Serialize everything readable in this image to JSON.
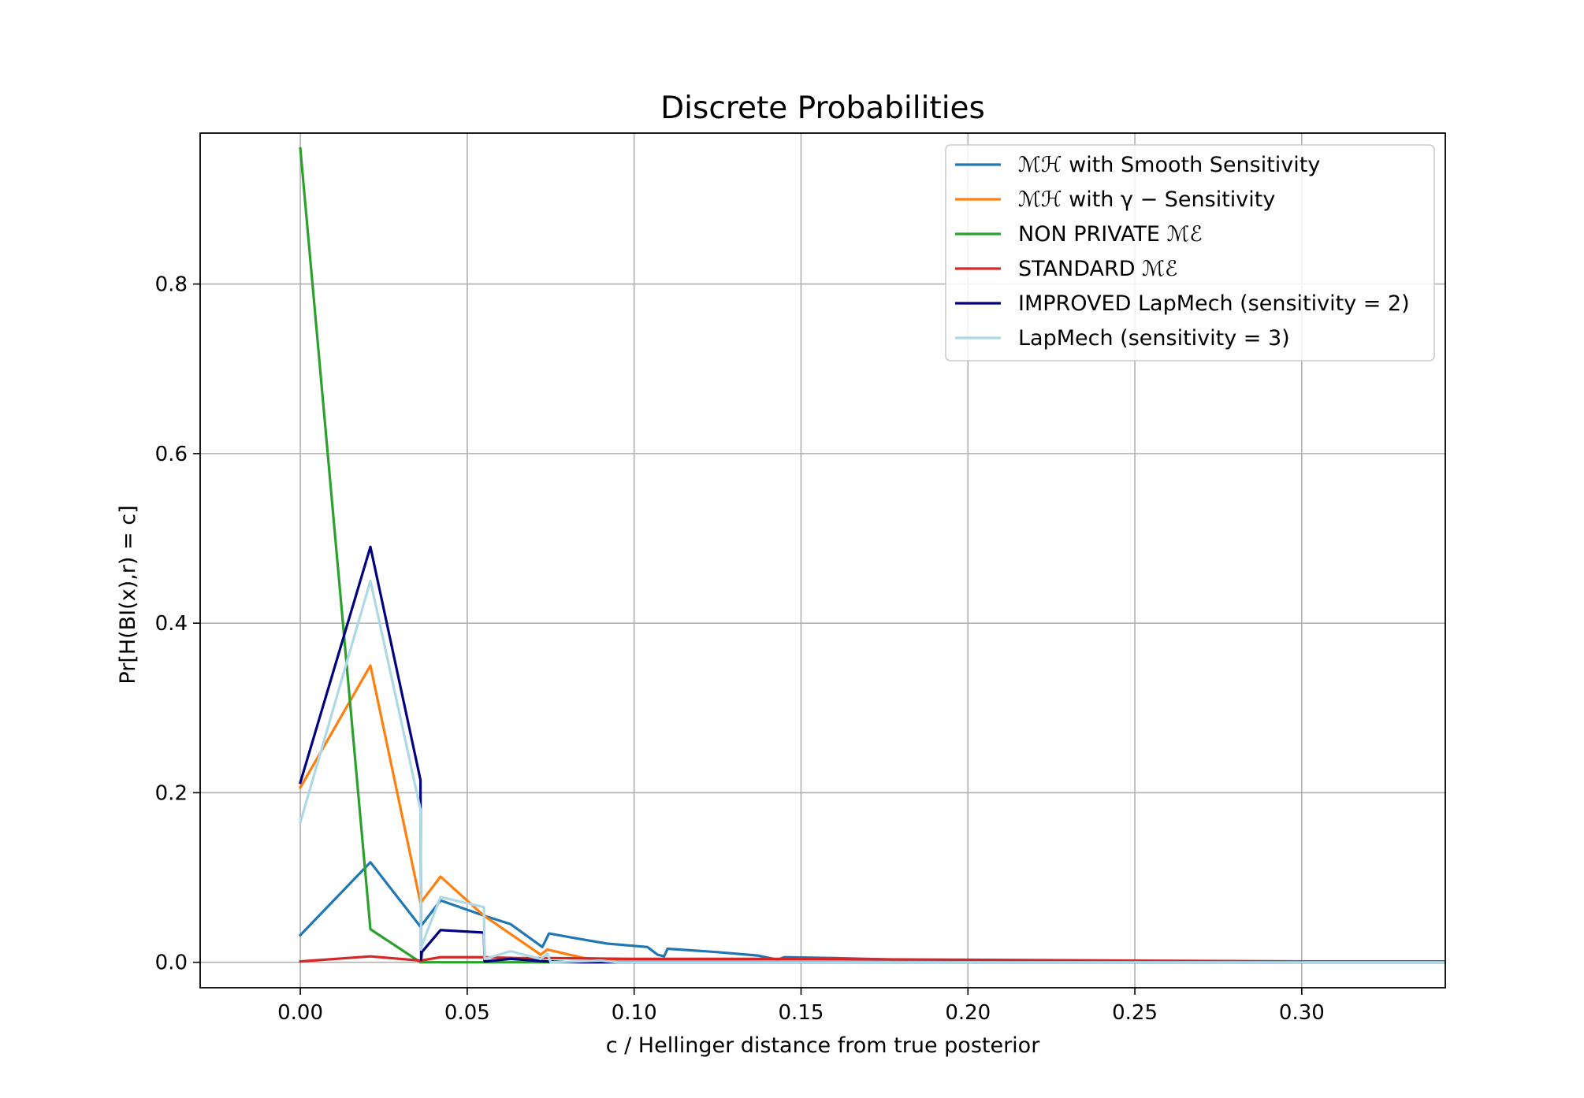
{
  "chart_data": {
    "type": "line",
    "title": "Discrete Probabilities",
    "xlabel": "c / Hellinger distance from true posterior",
    "ylabel": "Pr[H(BI(x),r) = c]",
    "xlim": [
      -0.03,
      0.343
    ],
    "ylim": [
      -0.03,
      0.978
    ],
    "x_ticks": [
      0.0,
      0.05,
      0.1,
      0.15,
      0.2,
      0.25,
      0.3
    ],
    "x_tick_labels": [
      "0.00",
      "0.05",
      "0.10",
      "0.15",
      "0.20",
      "0.25",
      "0.30"
    ],
    "y_ticks": [
      0.0,
      0.2,
      0.4,
      0.6,
      0.8
    ],
    "y_tick_labels": [
      "0.0",
      "0.2",
      "0.4",
      "0.6",
      "0.8"
    ],
    "grid": true,
    "legend_position": "upper right",
    "series": [
      {
        "name": "ℳℋ with Smooth Sensitivity",
        "color": "#1f77b4",
        "x": [
          0.0,
          0.021,
          0.036,
          0.042,
          0.055,
          0.063,
          0.0725,
          0.0745,
          0.083,
          0.092,
          0.104,
          0.107,
          0.109,
          0.11,
          0.125,
          0.137,
          0.143,
          0.145,
          0.16,
          0.18,
          0.2,
          0.25,
          0.3,
          0.343
        ],
        "y": [
          0.032,
          0.118,
          0.042,
          0.073,
          0.055,
          0.045,
          0.018,
          0.034,
          0.028,
          0.022,
          0.018,
          0.009,
          0.007,
          0.016,
          0.012,
          0.008,
          0.003,
          0.006,
          0.005,
          0.003,
          0.002,
          0.001,
          0.0005,
          0.0003
        ]
      },
      {
        "name": "ℳℋ with γ − Sensitivity",
        "color": "#ff7f0e",
        "x": [
          0.0,
          0.021,
          0.036,
          0.042,
          0.055,
          0.072,
          0.074,
          0.085,
          0.1,
          0.13,
          0.2,
          0.3,
          0.343
        ],
        "y": [
          0.206,
          0.35,
          0.07,
          0.101,
          0.055,
          0.009,
          0.015,
          0.005,
          0.002,
          0.001,
          0.0005,
          0.0003,
          0.0002
        ]
      },
      {
        "name": "NON PRIVATE ℳℰ",
        "color": "#2ca02c",
        "x": [
          0.0,
          0.021,
          0.036,
          0.055,
          0.075,
          0.1,
          0.343
        ],
        "y": [
          0.96,
          0.039,
          0.0,
          0.0,
          0.0,
          0.0,
          0.0
        ]
      },
      {
        "name": "STANDARD ℳℰ",
        "color": "#d62728",
        "x": [
          0.0,
          0.021,
          0.036,
          0.042,
          0.055,
          0.065,
          0.075,
          0.1,
          0.15,
          0.2,
          0.25,
          0.3,
          0.343
        ],
        "y": [
          0.001,
          0.007,
          0.002,
          0.006,
          0.006,
          0.005,
          0.005,
          0.004,
          0.004,
          0.003,
          0.002,
          0.001,
          0.001
        ]
      },
      {
        "name": "IMPROVED LapMech (sensitivity = 2)",
        "color": "#000080",
        "x": [
          0.0,
          0.021,
          0.036,
          0.0362,
          0.0364,
          0.042,
          0.055,
          0.0552,
          0.063,
          0.074,
          0.085,
          0.1,
          0.343
        ],
        "y": [
          0.212,
          0.49,
          0.215,
          0.003,
          0.012,
          0.038,
          0.035,
          0.001,
          0.004,
          0.001,
          0.0,
          0.0,
          0.0
        ]
      },
      {
        "name": "LapMech (sensitivity = 3)",
        "color": "#add8e6",
        "x": [
          0.0,
          0.021,
          0.036,
          0.0362,
          0.0364,
          0.042,
          0.055,
          0.0552,
          0.063,
          0.072,
          0.074,
          0.075,
          0.09,
          0.095,
          0.343
        ],
        "y": [
          0.165,
          0.45,
          0.18,
          0.015,
          0.02,
          0.077,
          0.065,
          0.004,
          0.013,
          0.004,
          0.01,
          0.0,
          0.002,
          0.0,
          0.0
        ]
      }
    ]
  }
}
